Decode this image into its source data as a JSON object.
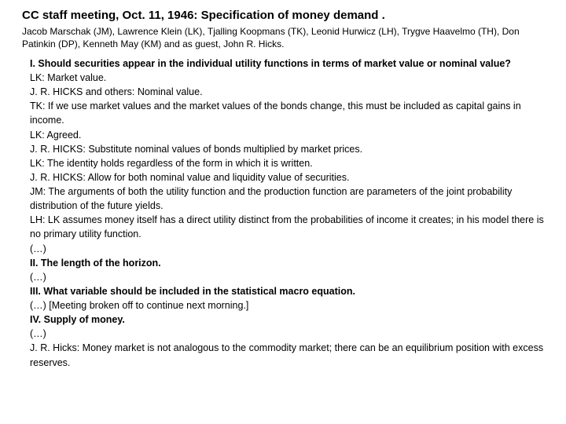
{
  "title": "CC staff meeting, Oct. 11, 1946: Specification of money demand .",
  "attendees": "Jacob Marschak (JM), Lawrence Klein (LK), Tjalling Koopmans (TK), Leonid Hurwicz (LH), Trygve Haavelmo (TH), Don Patinkin (DP), Kenneth May (KM) and as guest, John R. Hicks.",
  "lines": [
    {
      "bold": true,
      "text": "I. Should securities appear in the individual utility functions in terms of market value or nominal value?"
    },
    {
      "bold": false,
      "text": "LK: Market value."
    },
    {
      "bold": false,
      "text": "J. R. HICKS and others: Nominal value."
    },
    {
      "bold": false,
      "text": "TK: If we use market values and the market values of the bonds change, this must be included as capital gains in income."
    },
    {
      "bold": false,
      "text": "LK: Agreed."
    },
    {
      "bold": false,
      "text": "J. R. HICKS: Substitute nominal values of bonds multiplied by market prices."
    },
    {
      "bold": false,
      "text": "LK: The identity holds regardless of the form in which it is written."
    },
    {
      "bold": false,
      "text": "J. R. HICKS: Allow for both nominal value and liquidity value of securities."
    },
    {
      "bold": false,
      "text": "JM: The arguments of both the utility function and the production function are parameters of the joint probability distribution of the future yields."
    },
    {
      "bold": false,
      "text": "LH: LK assumes money itself has a direct utility distinct from the probabilities of income it creates; in his model there is no primary utility function."
    },
    {
      "bold": false,
      "text": "(…)"
    },
    {
      "bold": true,
      "text": "II. The length of the horizon."
    },
    {
      "bold": false,
      "text": "(…)"
    },
    {
      "bold": true,
      "text": "III. What variable should be included in the statistical macro equation."
    },
    {
      "bold": false,
      "text": "(…) [Meeting broken off to continue next morning.]"
    },
    {
      "bold": true,
      "text": "IV. Supply of money."
    },
    {
      "bold": false,
      "text": "(…)"
    },
    {
      "bold": false,
      "text": "J. R. Hicks: Money market is not analogous to the commodity market; there can be an equilibrium position with excess reserves."
    }
  ]
}
